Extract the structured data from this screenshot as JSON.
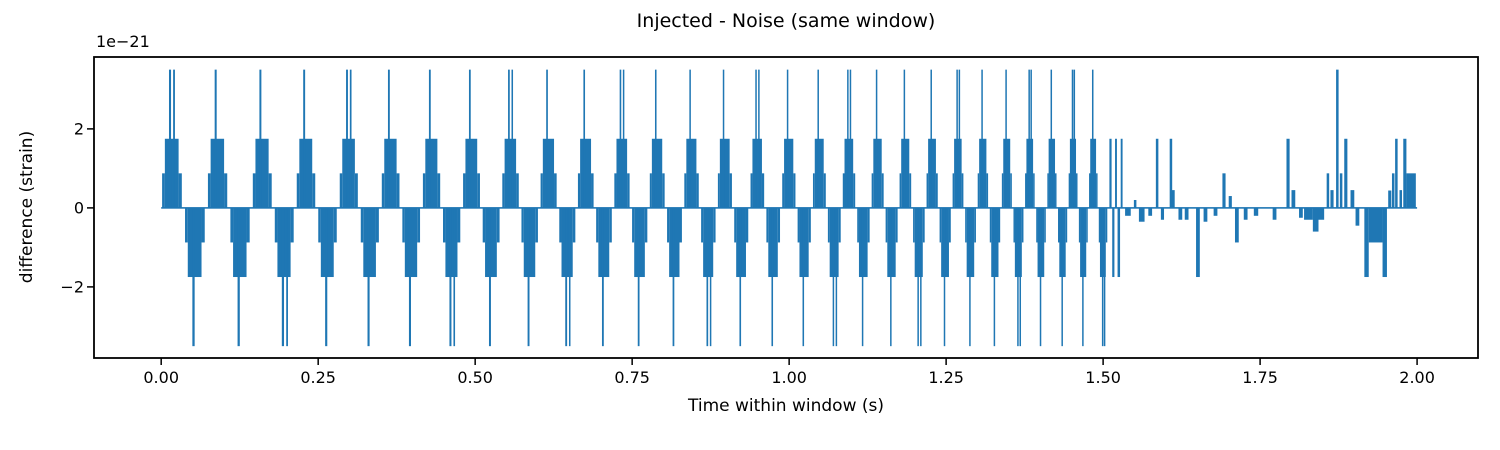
{
  "page": {
    "background": "#ffffff"
  },
  "chart_data": {
    "type": "line",
    "title": "Injected - Noise (same window)",
    "xlabel": "Time within window (s)",
    "ylabel": "difference (strain)",
    "offset_text": "1e−21",
    "y_unit": "1e-21",
    "line_color": "#1f77b4",
    "axis_color": "#000000",
    "text_color": "#000000",
    "grid": false,
    "legend": null,
    "xlim": [
      -0.107,
      2.097
    ],
    "ylim": [
      -3.8,
      3.82
    ],
    "xticks": [
      {
        "value": 0.0,
        "label": "0.00"
      },
      {
        "value": 0.25,
        "label": "0.25"
      },
      {
        "value": 0.5,
        "label": "0.50"
      },
      {
        "value": 0.75,
        "label": "0.75"
      },
      {
        "value": 1.0,
        "label": "1.00"
      },
      {
        "value": 1.25,
        "label": "1.25"
      },
      {
        "value": 1.5,
        "label": "1.50"
      },
      {
        "value": 1.75,
        "label": "1.75"
      },
      {
        "value": 2.0,
        "label": "2.00"
      }
    ],
    "yticks": [
      {
        "value": -2,
        "label": "−2"
      },
      {
        "value": 0,
        "label": "0"
      },
      {
        "value": 2,
        "label": "2"
      }
    ],
    "baseline": {
      "t_start": 0.0,
      "t_end": 2.0,
      "y": 0
    },
    "quantum": 0.875,
    "signal_end": 1.508,
    "cycles": [
      {
        "t": 0.0,
        "p": 0.073,
        "v": 1
      },
      {
        "t": 0.073,
        "p": 0.0715,
        "v": 0
      },
      {
        "t": 0.1445,
        "p": 0.07,
        "v": 2
      },
      {
        "t": 0.2145,
        "p": 0.0685,
        "v": 0
      },
      {
        "t": 0.283,
        "p": 0.067,
        "v": 1
      },
      {
        "t": 0.35,
        "p": 0.0655,
        "v": 0
      },
      {
        "t": 0.4155,
        "p": 0.064,
        "v": 2
      },
      {
        "t": 0.4795,
        "p": 0.0625,
        "v": 0
      },
      {
        "t": 0.542,
        "p": 0.061,
        "v": 1
      },
      {
        "t": 0.603,
        "p": 0.0595,
        "v": 2
      },
      {
        "t": 0.6625,
        "p": 0.058,
        "v": 0
      },
      {
        "t": 0.7205,
        "p": 0.0565,
        "v": 1
      },
      {
        "t": 0.777,
        "p": 0.055,
        "v": 0
      },
      {
        "t": 0.832,
        "p": 0.0535,
        "v": 2
      },
      {
        "t": 0.8855,
        "p": 0.052,
        "v": 0
      },
      {
        "t": 0.9375,
        "p": 0.0505,
        "v": 1
      },
      {
        "t": 0.988,
        "p": 0.049,
        "v": 0
      },
      {
        "t": 1.037,
        "p": 0.0475,
        "v": 2
      },
      {
        "t": 1.0845,
        "p": 0.046,
        "v": 1
      },
      {
        "t": 1.1305,
        "p": 0.0445,
        "v": 0
      },
      {
        "t": 1.175,
        "p": 0.043,
        "v": 2
      },
      {
        "t": 1.218,
        "p": 0.0415,
        "v": 0
      },
      {
        "t": 1.2595,
        "p": 0.04,
        "v": 1
      },
      {
        "t": 1.2995,
        "p": 0.0385,
        "v": 0
      },
      {
        "t": 1.338,
        "p": 0.037,
        "v": 2
      },
      {
        "t": 1.375,
        "p": 0.0355,
        "v": 1
      },
      {
        "t": 1.4105,
        "p": 0.034,
        "v": 0
      },
      {
        "t": 1.4445,
        "p": 0.0325,
        "v": 1
      },
      {
        "t": 1.477,
        "p": 0.031,
        "v": 2
      }
    ],
    "burst_template": [
      [
        0.02,
        0.08,
        1
      ],
      [
        0.08,
        0.38,
        2
      ],
      [
        0.17,
        0.215,
        4
      ],
      [
        0.38,
        0.45,
        1
      ],
      [
        0.52,
        0.58,
        -1
      ],
      [
        0.58,
        0.88,
        -2
      ],
      [
        0.68,
        0.73,
        -4
      ],
      [
        0.88,
        0.95,
        -1
      ]
    ],
    "variant_extras": {
      "1": [
        [
          0.26,
          0.3,
          4
        ]
      ],
      "2": [
        [
          0.78,
          0.82,
          -4
        ]
      ]
    },
    "tail_pulses": [
      [
        1.51,
        1.5135,
        1.75
      ],
      [
        1.5145,
        1.518,
        -1.75
      ],
      [
        1.519,
        1.522,
        1.75
      ],
      [
        1.523,
        1.527,
        -1.75
      ],
      [
        1.528,
        1.531,
        1.75
      ],
      [
        1.535,
        1.544,
        -0.2
      ],
      [
        1.549,
        1.553,
        0.2
      ],
      [
        1.557,
        1.566,
        -0.35
      ],
      [
        1.572,
        1.578,
        -0.2
      ],
      [
        1.584,
        1.588,
        1.75
      ],
      [
        1.592,
        1.597,
        -0.3
      ],
      [
        1.606,
        1.61,
        1.75
      ],
      [
        1.608,
        1.614,
        0.45
      ],
      [
        1.62,
        1.626,
        -0.3
      ],
      [
        1.63,
        1.636,
        -0.3
      ],
      [
        1.648,
        1.654,
        -1.75
      ],
      [
        1.66,
        1.666,
        -0.35
      ],
      [
        1.676,
        1.682,
        -0.2
      ],
      [
        1.69,
        1.695,
        0.875
      ],
      [
        1.7,
        1.705,
        0.3
      ],
      [
        1.71,
        1.716,
        -0.875
      ],
      [
        1.724,
        1.73,
        -0.3
      ],
      [
        1.74,
        1.747,
        -0.2
      ],
      [
        1.77,
        1.776,
        -0.3
      ],
      [
        1.792,
        1.797,
        1.75
      ],
      [
        1.8,
        1.806,
        0.45
      ],
      [
        1.812,
        1.818,
        -0.25
      ],
      [
        1.82,
        1.834,
        -0.3
      ],
      [
        1.834,
        1.843,
        -0.6
      ],
      [
        1.843,
        1.852,
        -0.3
      ],
      [
        1.856,
        1.86,
        0.875
      ],
      [
        1.862,
        1.867,
        0.45
      ],
      [
        1.871,
        1.875,
        3.5
      ],
      [
        1.877,
        1.881,
        0.875
      ],
      [
        1.884,
        1.889,
        1.75
      ],
      [
        1.894,
        1.9,
        0.45
      ],
      [
        1.902,
        1.908,
        -0.45
      ],
      [
        1.916,
        1.923,
        -1.75
      ],
      [
        1.923,
        1.945,
        -0.875
      ],
      [
        1.945,
        1.952,
        -1.75
      ],
      [
        1.954,
        1.959,
        0.44
      ],
      [
        1.96,
        1.964,
        0.875
      ],
      [
        1.965,
        1.969,
        1.75
      ],
      [
        1.972,
        1.976,
        0.45
      ],
      [
        1.978,
        1.983,
        1.75
      ],
      [
        1.983,
        1.998,
        0.875
      ]
    ]
  }
}
